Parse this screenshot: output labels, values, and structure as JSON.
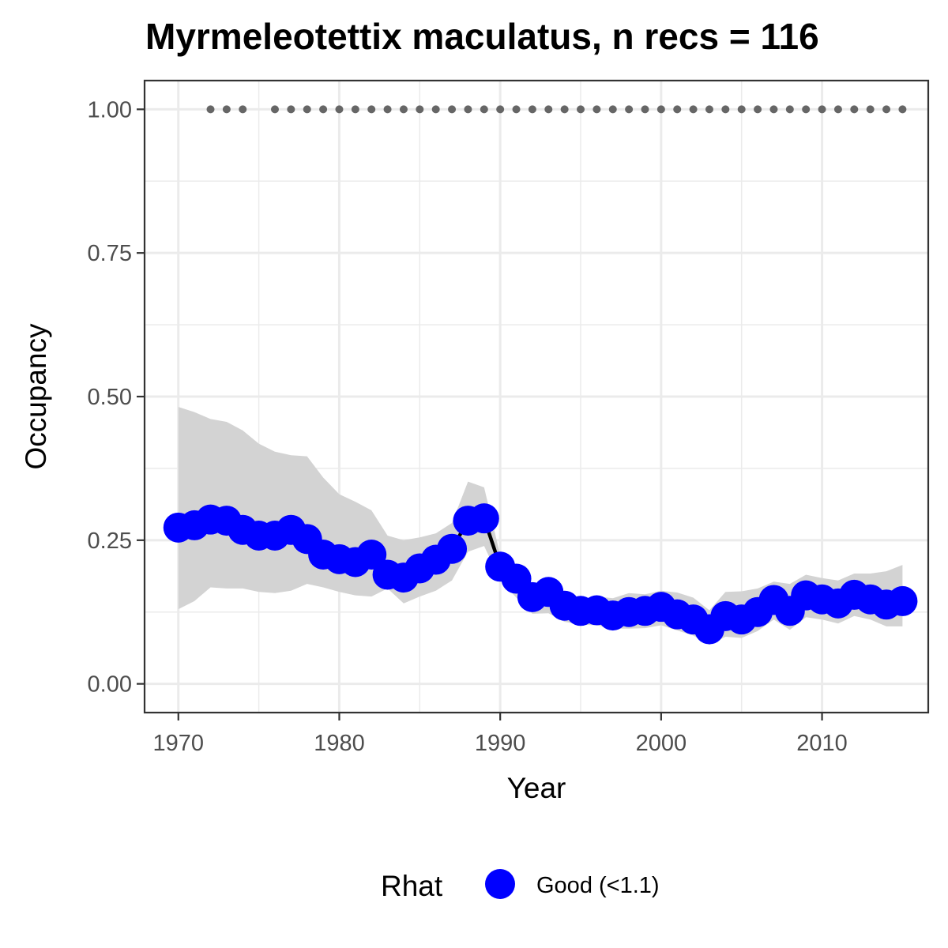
{
  "chart_data": {
    "type": "line",
    "title": "Myrmeleotettix maculatus, n recs = 116",
    "xlabel": "Year",
    "ylabel": "Occupancy",
    "xlim": [
      1967.9,
      2016.6
    ],
    "ylim": [
      -0.05,
      1.05
    ],
    "x_ticks": [
      1970,
      1980,
      1990,
      2000,
      2010
    ],
    "x_tick_labels": [
      "1970",
      "1980",
      "1990",
      "2000",
      "2010"
    ],
    "y_ticks": [
      0,
      0.25,
      0.5,
      0.75,
      1
    ],
    "y_tick_labels": [
      "0.00",
      "0.25",
      "0.50",
      "0.75",
      "1.00"
    ],
    "grid": true,
    "legend": {
      "title": "Rhat",
      "position": "bottom",
      "entries": [
        {
          "label": "Good (<1.1)",
          "color": "#0000ff"
        }
      ]
    },
    "colors": {
      "points": "#0000ff",
      "line": "#000000",
      "ribbon": "#d3d3d3",
      "record_dots": "#666666"
    },
    "x": [
      1970,
      1971,
      1972,
      1973,
      1974,
      1975,
      1976,
      1977,
      1978,
      1979,
      1980,
      1981,
      1982,
      1983,
      1984,
      1985,
      1986,
      1987,
      1988,
      1989,
      1990,
      1991,
      1992,
      1993,
      1994,
      1995,
      1996,
      1997,
      1998,
      1999,
      2000,
      2001,
      2002,
      2003,
      2004,
      2005,
      2006,
      2007,
      2008,
      2009,
      2010,
      2011,
      2012,
      2013,
      2014,
      2015
    ],
    "series": [
      {
        "values": [
          0.272,
          0.276,
          0.286,
          0.284,
          0.268,
          0.258,
          0.258,
          0.268,
          0.252,
          0.225,
          0.217,
          0.212,
          0.225,
          0.19,
          0.185,
          0.201,
          0.216,
          0.235,
          0.284,
          0.288,
          0.204,
          0.183,
          0.151,
          0.16,
          0.136,
          0.127,
          0.128,
          0.119,
          0.125,
          0.127,
          0.134,
          0.121,
          0.112,
          0.095,
          0.118,
          0.112,
          0.125,
          0.146,
          0.127,
          0.154,
          0.147,
          0.14,
          0.155,
          0.147,
          0.138,
          0.144
        ]
      }
    ],
    "ribbon": {
      "upper": [
        0.482,
        0.473,
        0.461,
        0.456,
        0.441,
        0.418,
        0.404,
        0.398,
        0.396,
        0.359,
        0.33,
        0.317,
        0.302,
        0.258,
        0.25,
        0.255,
        0.262,
        0.28,
        0.352,
        0.342,
        0.224,
        0.19,
        0.162,
        0.168,
        0.148,
        0.142,
        0.152,
        0.149,
        0.158,
        0.156,
        0.162,
        0.159,
        0.15,
        0.128,
        0.16,
        0.161,
        0.166,
        0.178,
        0.174,
        0.19,
        0.184,
        0.18,
        0.192,
        0.192,
        0.196,
        0.207
      ],
      "lower": [
        0.13,
        0.144,
        0.168,
        0.166,
        0.166,
        0.16,
        0.158,
        0.162,
        0.174,
        0.168,
        0.16,
        0.154,
        0.152,
        0.166,
        0.14,
        0.152,
        0.162,
        0.18,
        0.23,
        0.24,
        0.18,
        0.15,
        0.122,
        0.123,
        0.108,
        0.103,
        0.102,
        0.096,
        0.096,
        0.097,
        0.102,
        0.093,
        0.084,
        0.068,
        0.082,
        0.08,
        0.092,
        0.112,
        0.094,
        0.116,
        0.112,
        0.105,
        0.118,
        0.112,
        0.1,
        0.1
      ]
    },
    "record_years": [
      1972,
      1973,
      1974,
      1976,
      1977,
      1978,
      1979,
      1980,
      1981,
      1982,
      1983,
      1984,
      1985,
      1986,
      1987,
      1988,
      1989,
      1990,
      1991,
      1992,
      1993,
      1994,
      1995,
      1996,
      1997,
      1998,
      1999,
      2000,
      2001,
      2002,
      2003,
      2004,
      2005,
      2006,
      2007,
      2008,
      2009,
      2010,
      2011,
      2012,
      2013,
      2014,
      2015
    ],
    "record_value": 1.0
  }
}
